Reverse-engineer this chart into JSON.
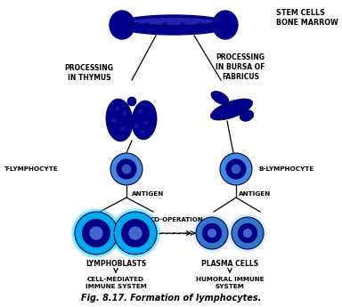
{
  "title": "Fig. 8.17. Formation of lymphocytes.",
  "bg_color": "#ffffff",
  "dark_blue": "#00008B",
  "cell_outer": "#1E90FF",
  "cell_inner": "#00008B",
  "cell_nucleus": "#4169E1",
  "lymphoblast_outer": "#00BFFF",
  "text_color": "#000000",
  "labels": {
    "stem_cells": "STEM CELLS\nBONE MARROW",
    "processing_thymus": "PROCESSING\nIN THYMUS",
    "processing_bursa": "PROCESSING\nIN BURSA OF\nFABRICUS",
    "t_lymphocyte": "T-LYMPHOCYTE",
    "b_lymphocyte": "B-LYMPHOCYTE",
    "antigen_left": "ANTIGEN",
    "antigen_right": "ANTIGEN",
    "co_operation": "CO-OPERATION",
    "lymphoblasts": "LYMPHOBLASTS",
    "plasma_cells": "PLASMA CELLS",
    "cell_mediated": "CELL-MEDIATED\nIMMUNE SYSTEM",
    "humoral": "HUMORAL IMMUNE\nSYSTEM"
  }
}
